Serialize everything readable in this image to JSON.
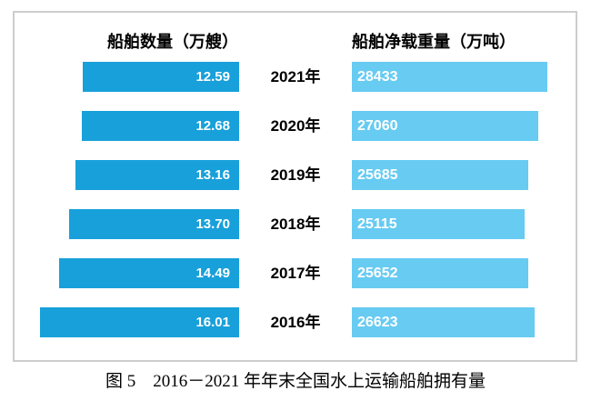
{
  "chart": {
    "left_header": "船舶数量（万艘）",
    "right_header": "船舶净载重量（万吨）",
    "rows": [
      {
        "year": "2021年",
        "ships": "12.59",
        "tonnage": "28433"
      },
      {
        "year": "2020年",
        "ships": "12.68",
        "tonnage": "27060"
      },
      {
        "year": "2019年",
        "ships": "13.16",
        "tonnage": "25685"
      },
      {
        "year": "2018年",
        "ships": "13.70",
        "tonnage": "25115"
      },
      {
        "year": "2017年",
        "ships": "14.49",
        "tonnage": "25652"
      },
      {
        "year": "2016年",
        "ships": "16.01",
        "tonnage": "26623"
      }
    ]
  },
  "caption": "图 5　2016－2021 年年末全国水上运输船舶拥有量",
  "colors": {
    "left_bar": "#18a0da",
    "right_bar": "#67cbf2",
    "border": "#cdcdcd"
  },
  "chart_data": {
    "type": "bar",
    "orientation": "horizontal-paired-pyramid",
    "categories": [
      "2021年",
      "2020年",
      "2019年",
      "2018年",
      "2017年",
      "2016年"
    ],
    "series": [
      {
        "name": "船舶数量（万艘）",
        "values": [
          12.59,
          12.68,
          13.16,
          13.7,
          14.49,
          16.01
        ],
        "labels": [
          "12.59",
          "12.68",
          "13.16",
          "13.70",
          "14.49",
          "16.01"
        ],
        "color": "#18a0da",
        "xlim": [
          0,
          16.01
        ],
        "side": "left"
      },
      {
        "name": "船舶净载重量（万吨）",
        "values": [
          28433,
          27060,
          25685,
          25115,
          25652,
          26623
        ],
        "labels": [
          "28433",
          "27060",
          "25685",
          "25115",
          "25652",
          "26623"
        ],
        "color": "#67cbf2",
        "xlim": [
          0,
          28433
        ],
        "side": "right"
      }
    ],
    "title": "图 5　2016－2021 年年末全国水上运输船舶拥有量",
    "value_labels": "inside-bar",
    "grid": false,
    "legend_position": "column-headers-top"
  }
}
